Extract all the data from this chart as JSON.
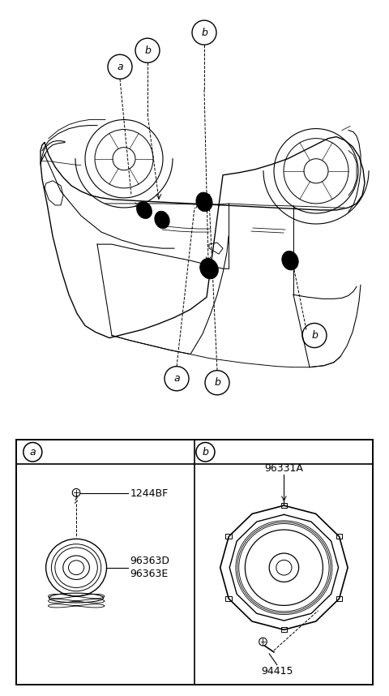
{
  "bg_color": "#ffffff",
  "part_1244BF": "1244BF",
  "part_96363D": "96363D",
  "part_96363E": "96363E",
  "part_96331A": "96331A",
  "part_94415": "94415",
  "label_a": "a",
  "label_b": "b",
  "line_color": "#000000",
  "car_lw": 0.9,
  "label_fontsize": 9,
  "parts_fontsize": 9
}
